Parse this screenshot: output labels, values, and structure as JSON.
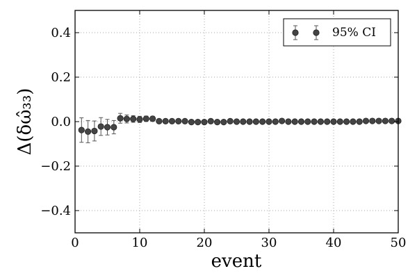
{
  "chart_data": {
    "type": "scatter",
    "xlabel": "event",
    "ylabel": "Δ(δω̂₃₃)",
    "xlim": [
      0,
      50
    ],
    "ylim": [
      -0.5,
      0.5
    ],
    "xticks": [
      0,
      10,
      20,
      30,
      40,
      50
    ],
    "yticks": [
      -0.4,
      -0.2,
      0.0,
      0.2,
      0.4
    ],
    "xtick_labels": [
      "0",
      "10",
      "20",
      "30",
      "40",
      "50"
    ],
    "ytick_labels": [
      "−0.4",
      "−0.2",
      "0.0",
      "0.2",
      "0.4"
    ],
    "grid": true,
    "legend_position": "top-right",
    "legend_label": "95% CI",
    "marker_color": "#444444",
    "errorbar_color": "#555555",
    "series": [
      {
        "name": "95% CI",
        "x": [
          1,
          2,
          3,
          4,
          5,
          6,
          7,
          8,
          9,
          10,
          11,
          12,
          13,
          14,
          15,
          16,
          17,
          18,
          19,
          20,
          21,
          22,
          23,
          24,
          25,
          26,
          27,
          28,
          29,
          30,
          31,
          32,
          33,
          34,
          35,
          36,
          37,
          38,
          39,
          40,
          41,
          42,
          43,
          44,
          45,
          46,
          47,
          48,
          49,
          50
        ],
        "y": [
          -0.038,
          -0.045,
          -0.042,
          -0.022,
          -0.025,
          -0.025,
          0.015,
          0.012,
          0.012,
          0.01,
          0.013,
          0.013,
          0.002,
          0.002,
          0.002,
          0.002,
          0.002,
          -0.002,
          -0.002,
          -0.002,
          0.002,
          -0.002,
          -0.002,
          0.002,
          0.0,
          0.0,
          0.0,
          0.0,
          0.0,
          0.0,
          0.0,
          0.003,
          0.0,
          0.0,
          0.0,
          0.0,
          0.0,
          0.0,
          0.0,
          0.0,
          0.0,
          0.0,
          0.0,
          0.0,
          0.003,
          0.003,
          0.003,
          0.003,
          0.003,
          0.003
        ],
        "err": [
          0.055,
          0.05,
          0.045,
          0.04,
          0.035,
          0.03,
          0.022,
          0.018,
          0.015,
          0.014,
          0.012,
          0.011,
          0.006,
          0.006,
          0.006,
          0.006,
          0.006,
          0.006,
          0.006,
          0.006,
          0.006,
          0.006,
          0.006,
          0.006,
          0.006,
          0.006,
          0.006,
          0.006,
          0.006,
          0.006,
          0.006,
          0.006,
          0.006,
          0.006,
          0.006,
          0.006,
          0.006,
          0.006,
          0.006,
          0.006,
          0.006,
          0.006,
          0.006,
          0.006,
          0.006,
          0.006,
          0.006,
          0.006,
          0.006,
          0.006
        ]
      }
    ]
  }
}
